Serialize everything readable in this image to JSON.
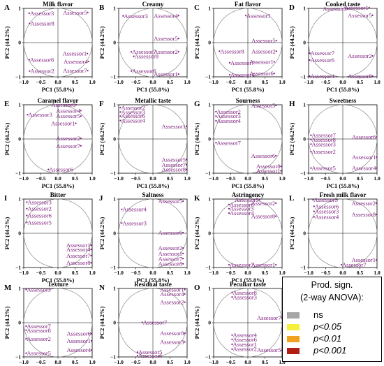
{
  "chart_data": [
    {
      "type": "scatter",
      "letter": "A",
      "title": "Milk flavor",
      "points": [
        {
          "label": "Assessor8",
          "x": -0.83,
          "y": 0.56
        },
        {
          "label": "Assessor5",
          "x": 0.87,
          "y": 0.88
        },
        {
          "label": "Assessor1",
          "x": 0.86,
          "y": -0.32
        },
        {
          "label": "Assessor3",
          "x": -0.84,
          "y": 0.86
        },
        {
          "label": "Assessor6",
          "x": -0.84,
          "y": -0.5
        },
        {
          "label": "Assessor4",
          "x": 0.89,
          "y": -0.55
        },
        {
          "label": "Assessor2",
          "x": -0.83,
          "y": -0.83
        },
        {
          "label": "Assessor7",
          "x": 0.87,
          "y": -0.82
        }
      ]
    },
    {
      "type": "scatter",
      "letter": "B",
      "title": "Creamy",
      "points": [
        {
          "label": "Assessor3",
          "x": -0.87,
          "y": 0.78
        },
        {
          "label": "Assessor4",
          "x": 0.75,
          "y": 0.79
        },
        {
          "label": "Assessor5",
          "x": 0.75,
          "y": 0.12
        },
        {
          "label": "Assessor7",
          "x": -0.63,
          "y": -0.27
        },
        {
          "label": "Assessor2",
          "x": 0.75,
          "y": -0.27
        },
        {
          "label": "Assessor8",
          "x": -0.56,
          "y": -0.4
        },
        {
          "label": "Assessor6",
          "x": -0.63,
          "y": -0.83
        },
        {
          "label": "Assessor1",
          "x": 0.75,
          "y": -0.92
        }
      ]
    },
    {
      "type": "scatter",
      "letter": "C",
      "title": "Fat flavor",
      "points": [
        {
          "label": "Assessor3",
          "x": -0.06,
          "y": 0.79
        },
        {
          "label": "Assessor5",
          "x": 0.83,
          "y": 0.06
        },
        {
          "label": "Assessor8",
          "x": -0.83,
          "y": -0.25
        },
        {
          "label": "Assessor2",
          "x": 0.83,
          "y": -0.25
        },
        {
          "label": "Assessor7",
          "x": -0.53,
          "y": -0.59
        },
        {
          "label": "Assessor1",
          "x": 0.77,
          "y": -0.56
        },
        {
          "label": "Assessor4",
          "x": -0.53,
          "y": -0.94
        },
        {
          "label": "Assessor6",
          "x": 0.77,
          "y": -0.9
        }
      ]
    },
    {
      "type": "scatter",
      "letter": "D",
      "title": "Cooked taste",
      "points": [
        {
          "label": "Assessor3",
          "x": 0.14,
          "y": 0.99
        },
        {
          "label": "Assessor1",
          "x": 0.77,
          "y": 1.02
        },
        {
          "label": "Assessor5",
          "x": 0.87,
          "y": 0.8
        },
        {
          "label": "Assessor7",
          "x": -0.97,
          "y": -0.31
        },
        {
          "label": "Assessor6",
          "x": -0.97,
          "y": -0.51
        },
        {
          "label": "Assessor2",
          "x": 0.87,
          "y": -0.39
        },
        {
          "label": "Assessor4",
          "x": -0.97,
          "y": -0.98
        },
        {
          "label": "Assessor8",
          "x": 0.87,
          "y": -0.98
        }
      ]
    },
    {
      "type": "scatter",
      "letter": "E",
      "title": "Caramel flavor",
      "points": [
        {
          "label": "Assessor8",
          "x": 0.53,
          "y": 1.0
        },
        {
          "label": "Assessor4",
          "x": 0.67,
          "y": 0.83
        },
        {
          "label": "Assessor3",
          "x": -0.89,
          "y": 0.71
        },
        {
          "label": "Assessor5",
          "x": 0.67,
          "y": 0.67
        },
        {
          "label": "Assessor1",
          "x": 0.52,
          "y": 0.46
        },
        {
          "label": "Assessor2",
          "x": 0.67,
          "y": 0.02
        },
        {
          "label": "Assessor7",
          "x": 0.67,
          "y": -0.2
        },
        {
          "label": "Assessor6",
          "x": -0.28,
          "y": -0.89
        }
      ]
    },
    {
      "type": "scatter",
      "letter": "F",
      "title": "Metallic taste",
      "points": [
        {
          "label": "Assessor2",
          "x": -0.95,
          "y": 0.92
        },
        {
          "label": "Assessor3",
          "x": -0.95,
          "y": 0.79
        },
        {
          "label": "Assessor6",
          "x": -0.95,
          "y": 0.67
        },
        {
          "label": "Assessor4",
          "x": -0.95,
          "y": 0.54
        },
        {
          "label": "Assessor1",
          "x": 0.98,
          "y": 0.37
        },
        {
          "label": "Assessor5",
          "x": 0.98,
          "y": -0.6
        },
        {
          "label": "Assessor7",
          "x": 0.98,
          "y": -0.75
        },
        {
          "label": "Assessor8",
          "x": 0.98,
          "y": -0.89
        }
      ]
    },
    {
      "type": "scatter",
      "letter": "G",
      "title": "Sourness",
      "points": [
        {
          "label": "Assessor5",
          "x": 0.82,
          "y": 0.98
        },
        {
          "label": "Assessor2",
          "x": -0.93,
          "y": 0.8
        },
        {
          "label": "Assessor3",
          "x": -0.93,
          "y": 0.67
        },
        {
          "label": "Assessor4",
          "x": -0.93,
          "y": 0.53
        },
        {
          "label": "Assessor7",
          "x": -0.93,
          "y": -0.11
        },
        {
          "label": "Assessor6",
          "x": 0.82,
          "y": -0.49
        },
        {
          "label": "Assessor8",
          "x": 0.97,
          "y": -0.8
        },
        {
          "label": "Assessor1",
          "x": 0.97,
          "y": -0.93
        }
      ]
    },
    {
      "type": "scatter",
      "letter": "H",
      "title": "Sweetness",
      "points": [
        {
          "label": "Assessor7",
          "x": -0.93,
          "y": 0.11
        },
        {
          "label": "Assessor6",
          "x": 0.99,
          "y": 0.06
        },
        {
          "label": "Assessor8",
          "x": -0.93,
          "y": -0.02
        },
        {
          "label": "Assessor3",
          "x": -0.93,
          "y": -0.15
        },
        {
          "label": "Assessor2",
          "x": -0.93,
          "y": -0.37
        },
        {
          "label": "Assessor1",
          "x": 0.99,
          "y": -0.53
        },
        {
          "label": "Assessor5",
          "x": -0.93,
          "y": -0.85
        },
        {
          "label": "Assessor4",
          "x": 0.99,
          "y": -0.85
        }
      ]
    },
    {
      "type": "scatter",
      "letter": "I",
      "title": "Bitter",
      "points": [
        {
          "label": "Assessor3",
          "x": -0.91,
          "y": 0.91
        },
        {
          "label": "Assessor2",
          "x": -0.91,
          "y": 0.72
        },
        {
          "label": "Assessor6",
          "x": -0.91,
          "y": 0.52
        },
        {
          "label": "Assessor5",
          "x": -0.91,
          "y": 0.32
        },
        {
          "label": "Assessor1",
          "x": 0.97,
          "y": -0.35
        },
        {
          "label": "Assessor4",
          "x": 0.97,
          "y": -0.47
        },
        {
          "label": "Assessor7",
          "x": 0.97,
          "y": -0.65
        },
        {
          "label": "Assessor8",
          "x": 0.97,
          "y": -0.86
        }
      ]
    },
    {
      "type": "scatter",
      "letter": "J",
      "title": "Saltness",
      "points": [
        {
          "label": "Assessor5",
          "x": 0.88,
          "y": 0.94
        },
        {
          "label": "Assessor4",
          "x": -0.91,
          "y": 0.7
        },
        {
          "label": "Assessor3",
          "x": -0.91,
          "y": 0.3
        },
        {
          "label": "Assessor6",
          "x": 0.88,
          "y": 0.02
        },
        {
          "label": "Assessor2",
          "x": 0.88,
          "y": -0.43
        },
        {
          "label": "Assessor1",
          "x": 0.88,
          "y": -0.59
        },
        {
          "label": "Assessor7",
          "x": 0.88,
          "y": -0.74
        },
        {
          "label": "Assessor8",
          "x": 0.88,
          "y": -0.89
        }
      ]
    },
    {
      "type": "scatter",
      "letter": "K",
      "title": "Astringency",
      "points": [
        {
          "label": "Assessor5",
          "x": 0.34,
          "y": 0.98
        },
        {
          "label": "Assessor2",
          "x": 0.82,
          "y": 0.88
        },
        {
          "label": "Assessor6",
          "x": -0.55,
          "y": 0.84
        },
        {
          "label": "Assessor3",
          "x": -0.55,
          "y": 0.72
        },
        {
          "label": "Assessor4",
          "x": -0.55,
          "y": 0.59
        },
        {
          "label": "Assessor8",
          "x": 0.82,
          "y": 0.5
        },
        {
          "label": "Assessor7",
          "x": -0.55,
          "y": -0.92
        },
        {
          "label": "Assessor1",
          "x": 0.82,
          "y": -0.92
        }
      ]
    },
    {
      "type": "scatter",
      "letter": "L",
      "title": "Fresh milk flavor",
      "points": [
        {
          "label": "Assessor5",
          "x": -0.87,
          "y": 0.98
        },
        {
          "label": "Assessor2",
          "x": 0.98,
          "y": 0.88
        },
        {
          "label": "Assessor6",
          "x": -0.84,
          "y": 0.79
        },
        {
          "label": "Assessor3",
          "x": -0.84,
          "y": 0.64
        },
        {
          "label": "Assessor4",
          "x": -0.84,
          "y": 0.48
        },
        {
          "label": "Assessor8",
          "x": 0.98,
          "y": 0.55
        },
        {
          "label": "Assessor1",
          "x": 0.98,
          "y": -0.78
        },
        {
          "label": "Assessor7",
          "x": -0.04,
          "y": -0.92
        }
      ]
    },
    {
      "type": "scatter",
      "letter": "M",
      "title": "Texture",
      "points": [
        {
          "label": "Assessor3",
          "x": -0.93,
          "y": 0.97
        },
        {
          "label": "Assessor7",
          "x": -0.93,
          "y": -0.1
        },
        {
          "label": "Assessor8",
          "x": -0.93,
          "y": -0.22
        },
        {
          "label": "Assessor6",
          "x": 0.98,
          "y": -0.32
        },
        {
          "label": "Assessor2",
          "x": -0.93,
          "y": -0.47
        },
        {
          "label": "Assessor1",
          "x": 0.98,
          "y": -0.53
        },
        {
          "label": "Assessor4",
          "x": 0.98,
          "y": -0.8
        },
        {
          "label": "Assessor5",
          "x": -0.93,
          "y": -0.89
        }
      ]
    },
    {
      "type": "scatter",
      "letter": "N",
      "title": "Residual taste",
      "points": [
        {
          "label": "Assessor1",
          "x": 0.93,
          "y": 0.97
        },
        {
          "label": "Assessor4",
          "x": 0.93,
          "y": 0.84
        },
        {
          "label": "Assessor2",
          "x": 0.93,
          "y": 0.6
        },
        {
          "label": "Assessor7",
          "x": -0.31,
          "y": 0.01
        },
        {
          "label": "Assessor8",
          "x": 0.93,
          "y": -0.31
        },
        {
          "label": "Assessor3",
          "x": 0.93,
          "y": -0.56
        },
        {
          "label": "Assessor5",
          "x": -0.45,
          "y": -0.86
        },
        {
          "label": "Assessor6",
          "x": -0.45,
          "y": -0.96
        }
      ]
    },
    {
      "type": "scatter",
      "letter": "O",
      "title": "Peculiar taste",
      "points": [
        {
          "label": "Assessor8",
          "x": -0.46,
          "y": 0.88
        },
        {
          "label": "Assessor3",
          "x": -0.46,
          "y": 0.75
        },
        {
          "label": "Assessor7",
          "x": 0.99,
          "y": 0.14
        },
        {
          "label": "Assessor4",
          "x": -0.46,
          "y": -0.36
        },
        {
          "label": "Assessor6",
          "x": -0.46,
          "y": -0.49
        },
        {
          "label": "Assessor1",
          "x": -0.46,
          "y": -0.63
        },
        {
          "label": "Assessor2",
          "x": -0.46,
          "y": -0.77
        },
        {
          "label": "Assessor5",
          "x": 0.99,
          "y": -0.8
        }
      ]
    }
  ],
  "axes": {
    "xlabel": "PC1 (55.8%)",
    "ylabel": "PC2 (44.2%)",
    "xlim": [
      -1.0,
      1.0
    ],
    "ylim": [
      -1.0,
      1.0
    ],
    "xticks": [
      "−1.0",
      "−0.5",
      "0.0",
      "0.5",
      "1.0"
    ],
    "yticks": [
      "1",
      "0",
      "−1"
    ]
  },
  "legend": {
    "title_line1": "Prod. sign.",
    "title_line2": "(2-way ANOVA):",
    "items": [
      {
        "label": "ns",
        "italic": false,
        "color": "#a6a6a6"
      },
      {
        "label": "p<0.05",
        "italic": true,
        "color": "#f5f03a"
      },
      {
        "label": "p<0.01",
        "italic": true,
        "color": "#f0a21e"
      },
      {
        "label": "p<0.001",
        "italic": true,
        "color": "#b21e12"
      }
    ]
  },
  "colors": {
    "label": "#7a1a7a",
    "point": "#7a1a7a",
    "axis": "#000000",
    "circle": "#7f7f7f"
  }
}
